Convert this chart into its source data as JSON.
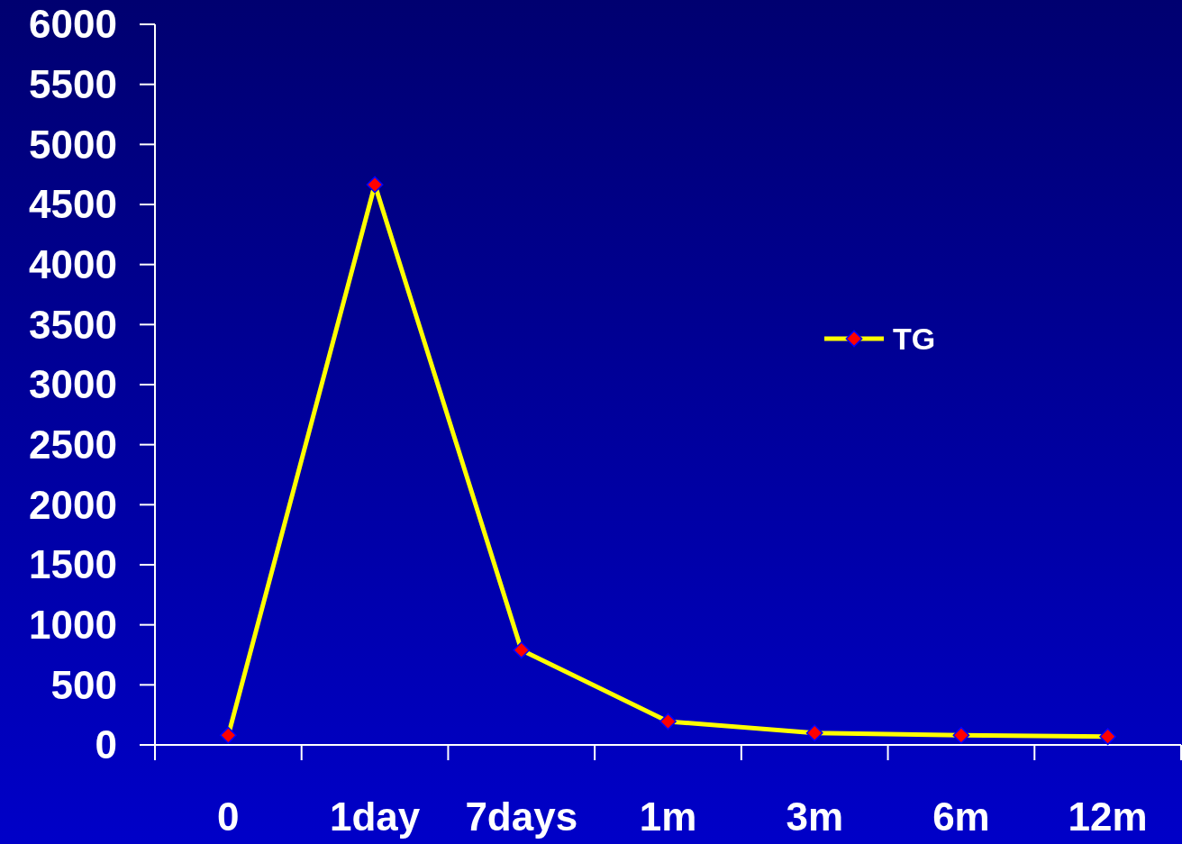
{
  "chart_data": {
    "type": "line",
    "categories": [
      "0",
      "1day",
      "7days",
      "1m",
      "3m",
      "6m",
      "12m"
    ],
    "series": [
      {
        "name": "TG",
        "color": "#ffff00",
        "values": [
          80,
          4665,
          790,
          195,
          100,
          80,
          70
        ]
      }
    ],
    "ylim": [
      0,
      6000
    ],
    "yticks": [
      0,
      500,
      1000,
      1500,
      2000,
      2500,
      3000,
      3500,
      4000,
      4500,
      5000,
      5500,
      6000
    ],
    "marker": "diamond",
    "line_style": "solid",
    "legend": "right",
    "grid": false
  }
}
